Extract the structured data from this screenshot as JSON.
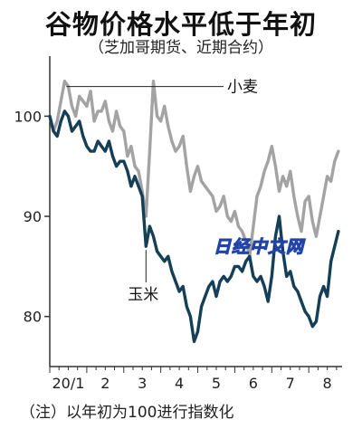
{
  "title": "谷物价格水平低于年初",
  "subtitle": "（芝加哥期货、近期合约）",
  "note": "（注）以年初为100进行指数化",
  "watermark": "日经中文网",
  "colors": {
    "wheat": "#a3a3a3",
    "corn": "#143f56",
    "axis": "#333333"
  },
  "chart_data": {
    "type": "line",
    "title": "谷物价格水平低于年初",
    "subtitle": "（芝加哥期货、近期合约）",
    "xlabel": "",
    "ylabel": "",
    "x_ticks": [
      "20/1",
      "2",
      "3",
      "4",
      "5",
      "6",
      "7",
      "8"
    ],
    "y_ticks": [
      80,
      90,
      100
    ],
    "ylim": [
      75,
      106
    ],
    "xlim": [
      0,
      7.9
    ],
    "grid": false,
    "series": [
      {
        "name": "小麦",
        "color": "#a3a3a3",
        "x": [
          0.0,
          0.1,
          0.2,
          0.3,
          0.4,
          0.5,
          0.6,
          0.7,
          0.8,
          0.9,
          1.0,
          1.1,
          1.2,
          1.3,
          1.4,
          1.5,
          1.6,
          1.7,
          1.8,
          1.9,
          2.0,
          2.1,
          2.2,
          2.3,
          2.4,
          2.5,
          2.6,
          2.7,
          2.8,
          2.9,
          3.0,
          3.1,
          3.2,
          3.3,
          3.4,
          3.5,
          3.6,
          3.7,
          3.8,
          3.9,
          4.0,
          4.1,
          4.2,
          4.3,
          4.4,
          4.5,
          4.6,
          4.7,
          4.8,
          4.9,
          5.0,
          5.1,
          5.2,
          5.3,
          5.4,
          5.5,
          5.6,
          5.7,
          5.8,
          5.9,
          6.0,
          6.1,
          6.2,
          6.3,
          6.4,
          6.5,
          6.6,
          6.7,
          6.8,
          6.9,
          7.0,
          7.1,
          7.2,
          7.3,
          7.4,
          7.5,
          7.6,
          7.7,
          7.8
        ],
        "y": [
          100,
          98.5,
          99.5,
          101.5,
          103.5,
          103,
          101,
          100,
          102,
          101.5,
          101,
          102.5,
          99.5,
          100.5,
          100.5,
          101.5,
          99.5,
          98.5,
          100.5,
          99,
          98.5,
          96,
          97,
          95,
          94.5,
          92.5,
          90,
          96.5,
          103.5,
          100,
          99.5,
          101,
          99,
          97.5,
          96.5,
          97,
          98,
          95,
          92.5,
          94,
          95,
          93.5,
          93,
          92.5,
          92,
          90.5,
          91,
          92,
          90,
          89.5,
          90.5,
          89,
          88.5,
          87.5,
          86,
          89,
          92,
          93,
          94.5,
          95.5,
          97,
          95,
          92.5,
          94,
          93,
          94.5,
          92,
          90,
          88.5,
          91.5,
          92,
          89.5,
          88,
          90,
          92,
          94,
          93.5,
          95.5,
          96.5
        ]
      },
      {
        "name": "玉米",
        "color": "#143f56",
        "x": [
          0.0,
          0.1,
          0.2,
          0.3,
          0.4,
          0.5,
          0.6,
          0.7,
          0.8,
          0.9,
          1.0,
          1.1,
          1.2,
          1.3,
          1.4,
          1.5,
          1.6,
          1.7,
          1.8,
          1.9,
          2.0,
          2.1,
          2.2,
          2.3,
          2.4,
          2.5,
          2.6,
          2.7,
          2.8,
          2.9,
          3.0,
          3.1,
          3.2,
          3.3,
          3.4,
          3.5,
          3.6,
          3.7,
          3.8,
          3.9,
          4.0,
          4.1,
          4.2,
          4.3,
          4.4,
          4.5,
          4.6,
          4.7,
          4.8,
          4.9,
          5.0,
          5.1,
          5.2,
          5.3,
          5.4,
          5.5,
          5.6,
          5.7,
          5.8,
          5.9,
          6.0,
          6.1,
          6.2,
          6.3,
          6.4,
          6.5,
          6.6,
          6.7,
          6.8,
          6.9,
          7.0,
          7.1,
          7.2,
          7.3,
          7.4,
          7.5,
          7.6,
          7.7,
          7.8
        ],
        "y": [
          100,
          98.5,
          98,
          99.5,
          100.5,
          100,
          98.5,
          99,
          99.5,
          98,
          97,
          96.5,
          96.5,
          97.5,
          97,
          96.5,
          97.5,
          96,
          95,
          95.5,
          95.5,
          94.5,
          93,
          94,
          93,
          92,
          87,
          89,
          88,
          86.5,
          86,
          85.5,
          86,
          84.5,
          83.5,
          82.5,
          83,
          81,
          80,
          77.5,
          78.5,
          81,
          82,
          83,
          83.5,
          82,
          83.5,
          84,
          83.5,
          84,
          85,
          85,
          84.5,
          85.5,
          86,
          84,
          83.5,
          84,
          83,
          81.5,
          84,
          88,
          90,
          86.5,
          84,
          84.5,
          83,
          82.5,
          81.5,
          80.5,
          80,
          79,
          79.5,
          82,
          83,
          82,
          85.5,
          87,
          88.5
        ]
      }
    ]
  },
  "labels": {
    "wheat": "小麦",
    "corn": "玉米"
  }
}
